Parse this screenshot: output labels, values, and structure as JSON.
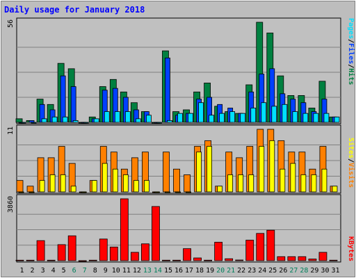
{
  "chart_data": {
    "type": "bar",
    "title": "Daily usage for January 2018",
    "categories": [
      "1",
      "2",
      "3",
      "4",
      "5",
      "6",
      "7",
      "8",
      "9",
      "10",
      "11",
      "12",
      "13",
      "14",
      "15",
      "16",
      "17",
      "18",
      "19",
      "20",
      "21",
      "22",
      "23",
      "24",
      "25",
      "26",
      "27",
      "28",
      "29",
      "30",
      "31"
    ],
    "weekend_days": [
      "6",
      "7",
      "13",
      "14",
      "20",
      "21",
      "27",
      "28"
    ],
    "panels": [
      {
        "name": "hits-files-pages",
        "max_label": "56",
        "ymax": 56,
        "labels": [
          "Pages",
          "Files",
          "Hits"
        ],
        "series": [
          {
            "name": "Hits",
            "color": "#008040",
            "values": [
              2,
              1,
              13,
              10,
              33,
              30,
              0,
              3,
              20,
              24,
              17,
              11,
              6,
              0,
              40,
              6,
              7,
              17,
              22,
              9,
              6,
              5,
              21,
              56,
              50,
              26,
              15,
              15,
              8,
              23,
              3
            ]
          },
          {
            "name": "Files",
            "color": "#0040ff",
            "values": [
              0,
              1,
              10,
              7,
              26,
              20,
              0,
              2,
              18,
              19,
              14,
              7,
              6,
              0,
              36,
              4,
              5,
              13,
              14,
              10,
              8,
              5,
              17,
              27,
              30,
              16,
              13,
              11,
              6,
              13,
              3
            ]
          },
          {
            "name": "Pages",
            "color": "#00e0ff",
            "values": [
              0,
              0,
              2,
              3,
              3,
              1,
              0,
              2,
              6,
              6,
              6,
              2,
              4,
              0,
              1,
              5,
              5,
              11,
              4,
              5,
              6,
              5,
              8,
              11,
              9,
              10,
              6,
              5,
              5,
              5,
              3
            ]
          }
        ]
      },
      {
        "name": "visits-sites",
        "max_label": "11",
        "ymax": 11,
        "labels": [
          "Sites",
          "Visits"
        ],
        "series": [
          {
            "name": "Visits",
            "color": "#ff8000",
            "values": [
              2,
              1,
              6,
              6,
              8,
              5,
              0,
              2,
              8,
              7,
              4,
              6,
              7,
              0,
              7,
              4,
              3,
              8,
              9,
              1,
              7,
              6,
              8,
              11,
              11,
              9,
              7,
              7,
              4,
              8,
              1
            ]
          },
          {
            "name": "Sites",
            "color": "#ffff00",
            "values": [
              0,
              0,
              2,
              3,
              3,
              1,
              0,
              2,
              5,
              4,
              3,
              2,
              2,
              0,
              0,
              0,
              0,
              7,
              8,
              1,
              3,
              3,
              3,
              8,
              9,
              4,
              5,
              3,
              3,
              4,
              1
            ]
          }
        ]
      },
      {
        "name": "kbytes",
        "max_label": "3860",
        "ymax": 3860,
        "labels": [
          "KBytes"
        ],
        "series": [
          {
            "name": "KBytes",
            "color": "#ff0000",
            "values": [
              30,
              30,
              1250,
              30,
              1000,
              1550,
              0,
              30,
              1350,
              850,
              3860,
              520,
              1050,
              3380,
              30,
              30,
              750,
              170,
              30,
              1150,
              120,
              40,
              1280,
              1700,
              1900,
              250,
              250,
              250,
              100,
              520,
              30
            ]
          }
        ]
      }
    ]
  },
  "colors": {
    "background": "#bdbdbd",
    "plot_background": "#c0c0c0",
    "title": "#0000ff",
    "weekday_label": "#000000",
    "weekend_label": "#00805c"
  }
}
